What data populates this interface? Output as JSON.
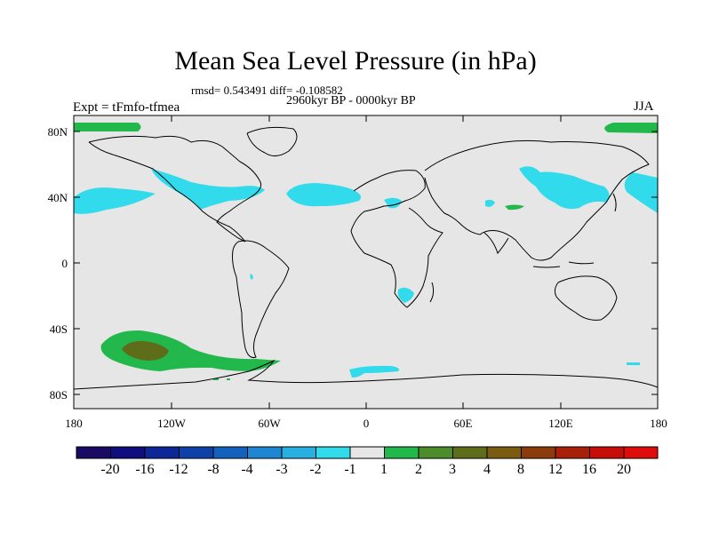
{
  "title": "Mean Sea Level Pressure (in hPa)",
  "stats_text": "rmsd= 0.543491 diff= -0.108582",
  "period_text": "2960kyr BP - 0000kyr BP",
  "experiment_text": "Expt = tFmfo-tfmea",
  "season_text": "JJA",
  "lat_labels": [
    "80N",
    "40N",
    "0",
    "40S",
    "80S"
  ],
  "lon_labels": [
    "180",
    "120W",
    "60W",
    "0",
    "60E",
    "120E",
    "180"
  ],
  "colorbar": {
    "labels": [
      "-20",
      "-16",
      "-12",
      "-8",
      "-4",
      "-3",
      "-2",
      "-1",
      "1",
      "2",
      "3",
      "4",
      "8",
      "12",
      "16",
      "20"
    ],
    "colors": [
      "#1a0a63",
      "#0f0d7d",
      "#0e2796",
      "#0f40a8",
      "#1461bd",
      "#1f87d2",
      "#28b0e3",
      "#32dbeb",
      "#e6e6e6",
      "#22b84b",
      "#4c8c2b",
      "#5e6d19",
      "#7a5c12",
      "#8c3b0c",
      "#a8200a",
      "#c70d08",
      "#e00b0b"
    ]
  },
  "colors": {
    "background": "#e6e6e6",
    "neg_small": "#32dbeb",
    "pos_small": "#22b84b",
    "pos_mid": "#5e6d19"
  }
}
